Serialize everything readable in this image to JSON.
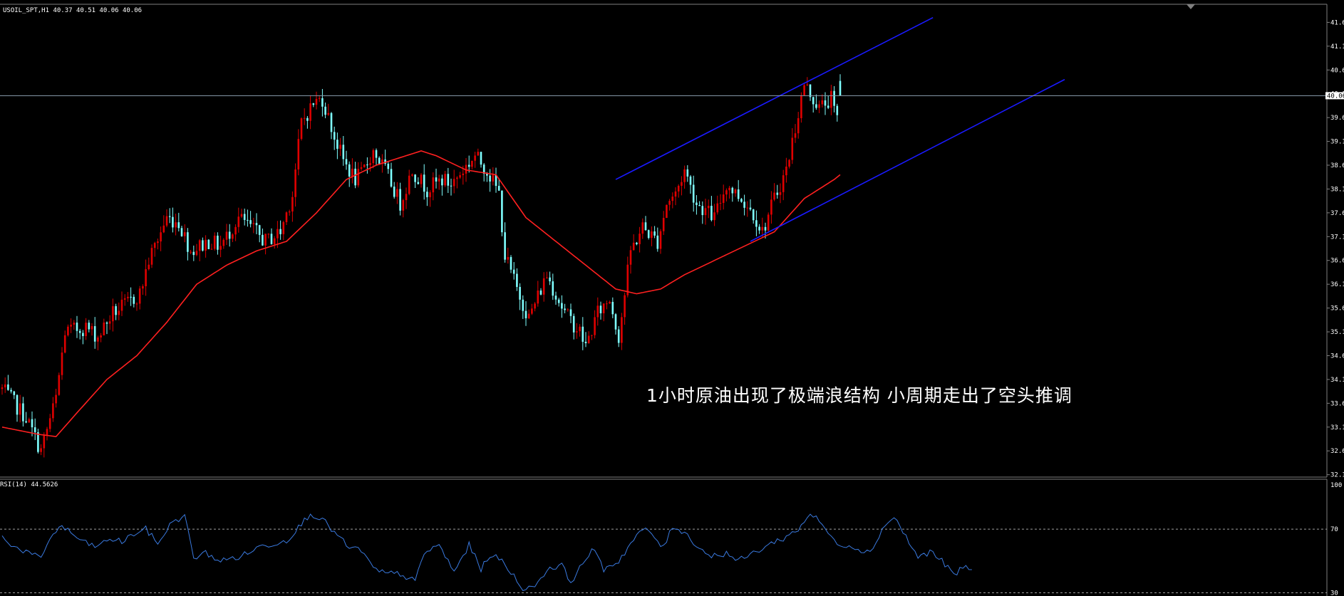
{
  "window": {
    "symbol_header": "USOIL_SPT,H1  40.37 40.51 40.06 40.06",
    "indicator_header": "RSI(14) 44.5626"
  },
  "annotation": "1小时原油出现了极端浪结构 小周期走出了空头推调",
  "colors": {
    "background": "#000000",
    "bull_candle": "#e00000",
    "bear_candle": "#7fffff",
    "moving_average": "#ff2020",
    "channel": "#1a1aff",
    "price_line": "#8ba0b0",
    "rsi_line": "#3a7ae0",
    "axis_text": "#ffffff",
    "price_tag_bg": "#ffffff",
    "price_tag_fg": "#000000"
  },
  "chart_data": [
    {
      "type": "candlestick",
      "symbol": "USOIL_SPT",
      "timeframe": "H1",
      "ohlc_last": {
        "open": 40.37,
        "high": 40.51,
        "low": 40.06,
        "close": 40.06
      },
      "current_price_label": "40.06",
      "y_ticks": [
        "41.6",
        "41.1",
        "40.6",
        "40.1",
        "39.6",
        "39.1",
        "38.6",
        "38.1",
        "37.6",
        "37.1",
        "36.6",
        "36.1",
        "35.6",
        "35.1",
        "34.6",
        "34.1",
        "33.6",
        "33.1",
        "32.6",
        "32.1"
      ],
      "ylim": [
        32.05,
        41.95
      ],
      "bars": 280,
      "close_path": [
        [
          0,
          33.9
        ],
        [
          8,
          33.3
        ],
        [
          13,
          32.6
        ],
        [
          18,
          33.7
        ],
        [
          21,
          35.1
        ],
        [
          28,
          35.2
        ],
        [
          32,
          35.0
        ],
        [
          37,
          35.5
        ],
        [
          42,
          35.7
        ],
        [
          46,
          35.9
        ],
        [
          49,
          36.6
        ],
        [
          55,
          37.5
        ],
        [
          59,
          37.4
        ],
        [
          63,
          36.8
        ],
        [
          69,
          37.0
        ],
        [
          73,
          36.9
        ],
        [
          79,
          37.5
        ],
        [
          83,
          37.3
        ],
        [
          88,
          37.0
        ],
        [
          93,
          37.2
        ],
        [
          97,
          38.0
        ],
        [
          100,
          39.5
        ],
        [
          104,
          39.9
        ],
        [
          107,
          40.0
        ],
        [
          111,
          39.2
        ],
        [
          114,
          38.7
        ],
        [
          118,
          38.3
        ],
        [
          120,
          38.4
        ],
        [
          124,
          38.9
        ],
        [
          128,
          38.5
        ],
        [
          133,
          37.8
        ],
        [
          137,
          38.5
        ],
        [
          142,
          38.1
        ],
        [
          147,
          38.3
        ],
        [
          150,
          38.2
        ],
        [
          154,
          38.5
        ],
        [
          158,
          38.8
        ],
        [
          162,
          38.5
        ],
        [
          166,
          38.0
        ],
        [
          168,
          36.7
        ],
        [
          172,
          36.0
        ],
        [
          176,
          35.4
        ],
        [
          182,
          36.3
        ],
        [
          188,
          35.5
        ],
        [
          193,
          35.1
        ],
        [
          195,
          34.8
        ],
        [
          199,
          35.5
        ],
        [
          203,
          35.8
        ],
        [
          206,
          35.0
        ],
        [
          210,
          36.8
        ],
        [
          214,
          37.3
        ],
        [
          219,
          37.0
        ],
        [
          222,
          37.8
        ],
        [
          225,
          38.0
        ],
        [
          228,
          38.5
        ],
        [
          232,
          37.8
        ],
        [
          238,
          37.5
        ],
        [
          242,
          38.2
        ],
        [
          247,
          37.9
        ],
        [
          251,
          37.6
        ],
        [
          254,
          37.2
        ],
        [
          258,
          37.9
        ],
        [
          262,
          38.5
        ],
        [
          265,
          39.4
        ],
        [
          268,
          40.3
        ],
        [
          273,
          39.8
        ],
        [
          277,
          40.0
        ],
        [
          280,
          39.3
        ],
        [
          285,
          40.1
        ],
        [
          290,
          40.0
        ],
        [
          293,
          40.4
        ],
        [
          297,
          41.0
        ],
        [
          300,
          40.6
        ],
        [
          304,
          41.2
        ],
        [
          308,
          41.6
        ],
        [
          311,
          41.3
        ],
        [
          314,
          40.3
        ],
        [
          317,
          40.0
        ],
        [
          320,
          40.2
        ],
        [
          323,
          40.06
        ]
      ],
      "moving_average_path": [
        [
          0,
          33.1
        ],
        [
          12,
          32.95
        ],
        [
          18,
          32.9
        ],
        [
          25,
          33.4
        ],
        [
          35,
          34.1
        ],
        [
          45,
          34.6
        ],
        [
          55,
          35.3
        ],
        [
          65,
          36.1
        ],
        [
          75,
          36.5
        ],
        [
          85,
          36.8
        ],
        [
          95,
          37.0
        ],
        [
          105,
          37.6
        ],
        [
          115,
          38.3
        ],
        [
          125,
          38.6
        ],
        [
          135,
          38.8
        ],
        [
          140,
          38.9
        ],
        [
          145,
          38.8
        ],
        [
          155,
          38.5
        ],
        [
          165,
          38.4
        ],
        [
          175,
          37.5
        ],
        [
          185,
          37.0
        ],
        [
          195,
          36.5
        ],
        [
          205,
          36.0
        ],
        [
          212,
          35.9
        ],
        [
          220,
          36.0
        ],
        [
          228,
          36.3
        ],
        [
          238,
          36.6
        ],
        [
          248,
          36.9
        ],
        [
          258,
          37.2
        ],
        [
          268,
          37.9
        ],
        [
          278,
          38.3
        ],
        [
          288,
          38.8
        ],
        [
          298,
          39.4
        ],
        [
          306,
          39.8
        ],
        [
          312,
          40.1
        ],
        [
          316,
          40.3
        ],
        [
          323,
          40.3
        ]
      ],
      "channel_upper": [
        [
          205,
          38.3
        ],
        [
          311,
          41.7
        ]
      ],
      "channel_lower": [
        [
          250,
          37.0
        ],
        [
          355,
          40.4
        ]
      ]
    },
    {
      "type": "line",
      "name": "RSI(14)",
      "last_value": 44.5626,
      "y_ticks": [
        "100",
        "70",
        "30"
      ],
      "levels": [
        70,
        30
      ],
      "ylim": [
        28,
        100
      ],
      "path": [
        [
          0,
          65
        ],
        [
          5,
          58
        ],
        [
          9,
          55
        ],
        [
          13,
          51
        ],
        [
          16,
          65
        ],
        [
          20,
          72
        ],
        [
          24,
          66
        ],
        [
          28,
          61
        ],
        [
          32,
          59
        ],
        [
          36,
          64
        ],
        [
          40,
          62
        ],
        [
          44,
          67
        ],
        [
          48,
          70
        ],
        [
          52,
          61
        ],
        [
          57,
          75
        ],
        [
          61,
          78
        ],
        [
          64,
          52
        ],
        [
          68,
          55
        ],
        [
          73,
          50
        ],
        [
          80,
          53
        ],
        [
          86,
          59
        ],
        [
          91,
          61
        ],
        [
          95,
          63
        ],
        [
          99,
          71
        ],
        [
          103,
          80
        ],
        [
          107,
          76
        ],
        [
          112,
          66
        ],
        [
          116,
          58
        ],
        [
          120,
          57
        ],
        [
          124,
          45
        ],
        [
          128,
          42
        ],
        [
          133,
          42
        ],
        [
          138,
          37
        ],
        [
          141,
          55
        ],
        [
          146,
          60
        ],
        [
          151,
          43
        ],
        [
          156,
          60
        ],
        [
          160,
          45
        ],
        [
          163,
          54
        ],
        [
          167,
          50
        ],
        [
          172,
          38
        ],
        [
          175,
          31
        ],
        [
          179,
          37
        ],
        [
          183,
          46
        ],
        [
          187,
          47
        ],
        [
          190,
          37
        ],
        [
          194,
          48
        ],
        [
          197,
          58
        ],
        [
          201,
          45
        ],
        [
          206,
          50
        ],
        [
          210,
          61
        ],
        [
          214,
          70
        ],
        [
          217,
          67
        ],
        [
          221,
          58
        ],
        [
          224,
          72
        ],
        [
          228,
          68
        ],
        [
          233,
          58
        ],
        [
          237,
          53
        ],
        [
          242,
          55
        ],
        [
          246,
          50
        ],
        [
          250,
          54
        ],
        [
          254,
          58
        ],
        [
          258,
          62
        ],
        [
          262,
          65
        ],
        [
          266,
          70
        ],
        [
          270,
          80
        ],
        [
          274,
          73
        ],
        [
          278,
          62
        ],
        [
          282,
          60
        ],
        [
          286,
          58
        ],
        [
          290,
          55
        ],
        [
          294,
          70
        ],
        [
          298,
          78
        ],
        [
          302,
          65
        ],
        [
          306,
          52
        ],
        [
          310,
          56
        ],
        [
          314,
          50
        ],
        [
          318,
          41
        ],
        [
          322,
          47
        ],
        [
          324,
          44.56
        ]
      ]
    }
  ]
}
